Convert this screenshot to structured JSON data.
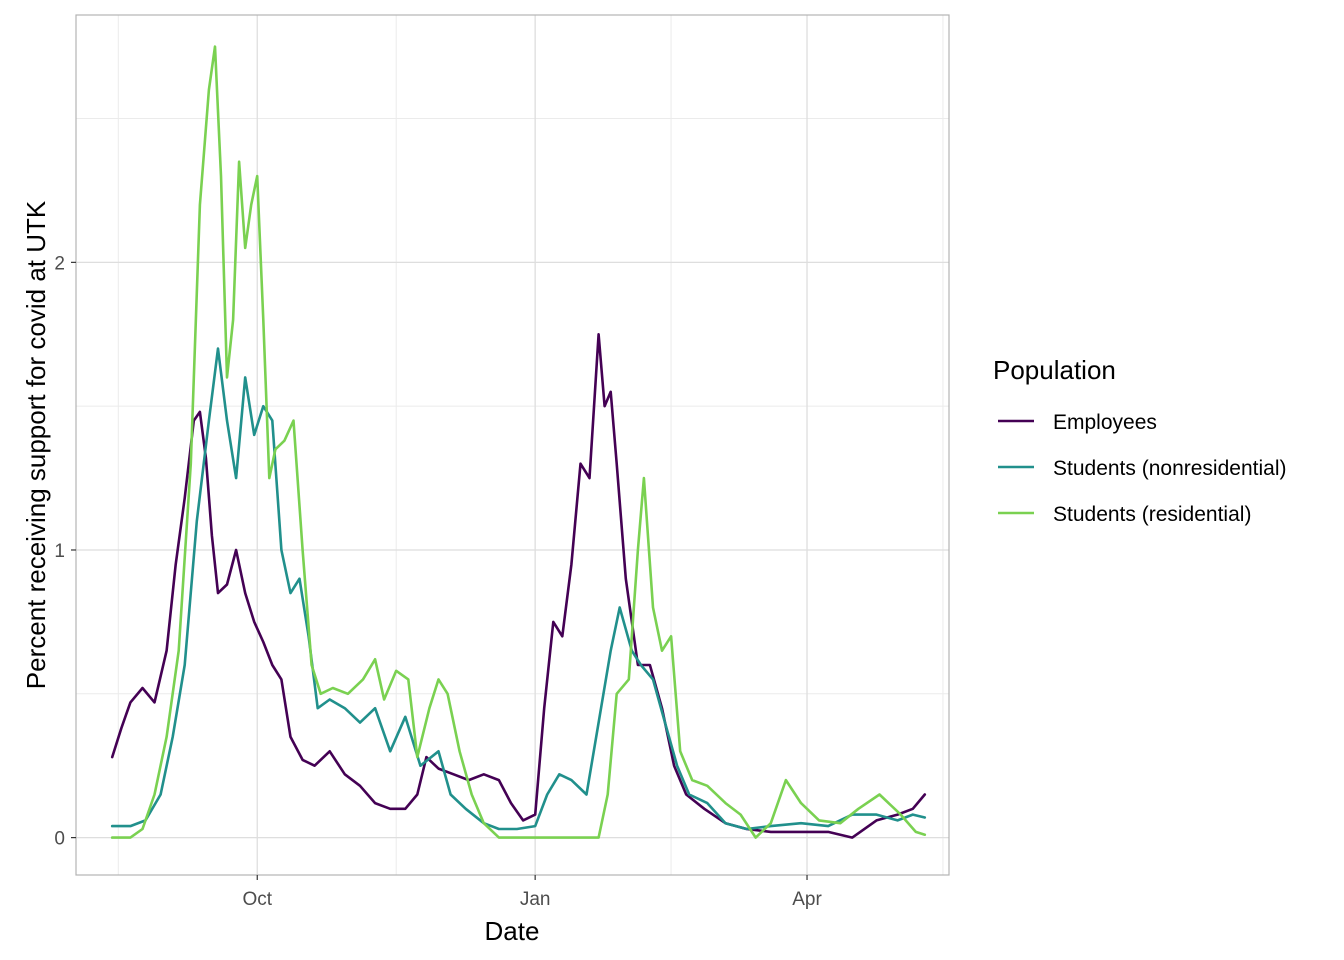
{
  "chart_data": {
    "type": "line",
    "xlabel": "Date",
    "ylabel": "Percent receiving support for covid at UTK",
    "x_start": "2020-08-14",
    "x_end": "2021-05-10",
    "xlim": [
      "2020-08-02",
      "2021-05-18"
    ],
    "ylim": [
      -0.13,
      2.86
    ],
    "x_ticks": [
      {
        "date": "2020-10-01",
        "label": "Oct"
      },
      {
        "date": "2021-01-01",
        "label": "Jan"
      },
      {
        "date": "2021-04-01",
        "label": "Apr"
      }
    ],
    "x_minor_ticks": [
      "2020-08-16",
      "2020-11-16",
      "2021-02-15",
      "2021-05-16"
    ],
    "y_ticks": [
      {
        "value": 0,
        "label": "0"
      },
      {
        "value": 1,
        "label": "1"
      },
      {
        "value": 2,
        "label": "2"
      }
    ],
    "y_minor_ticks": [
      0.5,
      1.5,
      2.5
    ],
    "grid": true,
    "legend": {
      "title": "Population",
      "position": "right"
    },
    "series": [
      {
        "name": "Employees",
        "color": "#440154",
        "points": [
          [
            "2020-08-14",
            0.28
          ],
          [
            "2020-08-17",
            0.38
          ],
          [
            "2020-08-20",
            0.47
          ],
          [
            "2020-08-24",
            0.52
          ],
          [
            "2020-08-28",
            0.47
          ],
          [
            "2020-09-01",
            0.65
          ],
          [
            "2020-09-04",
            0.95
          ],
          [
            "2020-09-07",
            1.18
          ],
          [
            "2020-09-10",
            1.45
          ],
          [
            "2020-09-12",
            1.48
          ],
          [
            "2020-09-14",
            1.32
          ],
          [
            "2020-09-16",
            1.05
          ],
          [
            "2020-09-18",
            0.85
          ],
          [
            "2020-09-21",
            0.88
          ],
          [
            "2020-09-24",
            1.0
          ],
          [
            "2020-09-27",
            0.85
          ],
          [
            "2020-09-30",
            0.75
          ],
          [
            "2020-10-03",
            0.68
          ],
          [
            "2020-10-06",
            0.6
          ],
          [
            "2020-10-09",
            0.55
          ],
          [
            "2020-10-12",
            0.35
          ],
          [
            "2020-10-16",
            0.27
          ],
          [
            "2020-10-20",
            0.25
          ],
          [
            "2020-10-25",
            0.3
          ],
          [
            "2020-10-30",
            0.22
          ],
          [
            "2020-11-04",
            0.18
          ],
          [
            "2020-11-09",
            0.12
          ],
          [
            "2020-11-14",
            0.1
          ],
          [
            "2020-11-19",
            0.1
          ],
          [
            "2020-11-23",
            0.15
          ],
          [
            "2020-11-26",
            0.28
          ],
          [
            "2020-11-30",
            0.24
          ],
          [
            "2020-12-05",
            0.22
          ],
          [
            "2020-12-10",
            0.2
          ],
          [
            "2020-12-15",
            0.22
          ],
          [
            "2020-12-20",
            0.2
          ],
          [
            "2020-12-24",
            0.12
          ],
          [
            "2020-12-28",
            0.06
          ],
          [
            "2021-01-01",
            0.08
          ],
          [
            "2021-01-04",
            0.45
          ],
          [
            "2021-01-07",
            0.75
          ],
          [
            "2021-01-10",
            0.7
          ],
          [
            "2021-01-13",
            0.95
          ],
          [
            "2021-01-16",
            1.3
          ],
          [
            "2021-01-19",
            1.25
          ],
          [
            "2021-01-22",
            1.75
          ],
          [
            "2021-01-24",
            1.5
          ],
          [
            "2021-01-26",
            1.55
          ],
          [
            "2021-01-28",
            1.3
          ],
          [
            "2021-01-31",
            0.9
          ],
          [
            "2021-02-04",
            0.6
          ],
          [
            "2021-02-08",
            0.6
          ],
          [
            "2021-02-12",
            0.45
          ],
          [
            "2021-02-16",
            0.25
          ],
          [
            "2021-02-20",
            0.15
          ],
          [
            "2021-02-26",
            0.1
          ],
          [
            "2021-03-05",
            0.05
          ],
          [
            "2021-03-12",
            0.03
          ],
          [
            "2021-03-20",
            0.02
          ],
          [
            "2021-03-30",
            0.02
          ],
          [
            "2021-04-08",
            0.02
          ],
          [
            "2021-04-16",
            0.0
          ],
          [
            "2021-04-24",
            0.06
          ],
          [
            "2021-05-01",
            0.08
          ],
          [
            "2021-05-06",
            0.1
          ],
          [
            "2021-05-10",
            0.15
          ]
        ]
      },
      {
        "name": "Students (nonresidential)",
        "color": "#21908C",
        "points": [
          [
            "2020-08-14",
            0.04
          ],
          [
            "2020-08-20",
            0.04
          ],
          [
            "2020-08-25",
            0.06
          ],
          [
            "2020-08-30",
            0.15
          ],
          [
            "2020-09-03",
            0.35
          ],
          [
            "2020-09-07",
            0.6
          ],
          [
            "2020-09-11",
            1.1
          ],
          [
            "2020-09-15",
            1.45
          ],
          [
            "2020-09-18",
            1.7
          ],
          [
            "2020-09-21",
            1.45
          ],
          [
            "2020-09-24",
            1.25
          ],
          [
            "2020-09-27",
            1.6
          ],
          [
            "2020-09-30",
            1.4
          ],
          [
            "2020-10-03",
            1.5
          ],
          [
            "2020-10-06",
            1.45
          ],
          [
            "2020-10-09",
            1.0
          ],
          [
            "2020-10-12",
            0.85
          ],
          [
            "2020-10-15",
            0.9
          ],
          [
            "2020-10-18",
            0.7
          ],
          [
            "2020-10-21",
            0.45
          ],
          [
            "2020-10-25",
            0.48
          ],
          [
            "2020-10-30",
            0.45
          ],
          [
            "2020-11-04",
            0.4
          ],
          [
            "2020-11-09",
            0.45
          ],
          [
            "2020-11-14",
            0.3
          ],
          [
            "2020-11-19",
            0.42
          ],
          [
            "2020-11-24",
            0.25
          ],
          [
            "2020-11-30",
            0.3
          ],
          [
            "2020-12-04",
            0.15
          ],
          [
            "2020-12-09",
            0.1
          ],
          [
            "2020-12-15",
            0.05
          ],
          [
            "2020-12-20",
            0.03
          ],
          [
            "2020-12-26",
            0.03
          ],
          [
            "2021-01-01",
            0.04
          ],
          [
            "2021-01-05",
            0.15
          ],
          [
            "2021-01-09",
            0.22
          ],
          [
            "2021-01-13",
            0.2
          ],
          [
            "2021-01-18",
            0.15
          ],
          [
            "2021-01-22",
            0.4
          ],
          [
            "2021-01-26",
            0.65
          ],
          [
            "2021-01-29",
            0.8
          ],
          [
            "2021-02-02",
            0.65
          ],
          [
            "2021-02-05",
            0.6
          ],
          [
            "2021-02-09",
            0.55
          ],
          [
            "2021-02-13",
            0.4
          ],
          [
            "2021-02-17",
            0.25
          ],
          [
            "2021-02-21",
            0.15
          ],
          [
            "2021-02-27",
            0.12
          ],
          [
            "2021-03-05",
            0.05
          ],
          [
            "2021-03-12",
            0.03
          ],
          [
            "2021-03-20",
            0.04
          ],
          [
            "2021-03-30",
            0.05
          ],
          [
            "2021-04-08",
            0.04
          ],
          [
            "2021-04-16",
            0.08
          ],
          [
            "2021-04-24",
            0.08
          ],
          [
            "2021-05-01",
            0.06
          ],
          [
            "2021-05-06",
            0.08
          ],
          [
            "2021-05-10",
            0.07
          ]
        ]
      },
      {
        "name": "Students (residential)",
        "color": "#7AD151",
        "points": [
          [
            "2020-08-14",
            0.0
          ],
          [
            "2020-08-20",
            0.0
          ],
          [
            "2020-08-24",
            0.03
          ],
          [
            "2020-08-28",
            0.15
          ],
          [
            "2020-09-01",
            0.35
          ],
          [
            "2020-09-05",
            0.65
          ],
          [
            "2020-09-09",
            1.3
          ],
          [
            "2020-09-12",
            2.2
          ],
          [
            "2020-09-15",
            2.6
          ],
          [
            "2020-09-17",
            2.75
          ],
          [
            "2020-09-19",
            2.3
          ],
          [
            "2020-09-21",
            1.6
          ],
          [
            "2020-09-23",
            1.8
          ],
          [
            "2020-09-25",
            2.35
          ],
          [
            "2020-09-27",
            2.05
          ],
          [
            "2020-09-29",
            2.2
          ],
          [
            "2020-10-01",
            2.3
          ],
          [
            "2020-10-03",
            1.8
          ],
          [
            "2020-10-05",
            1.25
          ],
          [
            "2020-10-07",
            1.35
          ],
          [
            "2020-10-10",
            1.38
          ],
          [
            "2020-10-13",
            1.45
          ],
          [
            "2020-10-16",
            1.0
          ],
          [
            "2020-10-19",
            0.6
          ],
          [
            "2020-10-22",
            0.5
          ],
          [
            "2020-10-26",
            0.52
          ],
          [
            "2020-10-31",
            0.5
          ],
          [
            "2020-11-05",
            0.55
          ],
          [
            "2020-11-09",
            0.62
          ],
          [
            "2020-11-12",
            0.48
          ],
          [
            "2020-11-16",
            0.58
          ],
          [
            "2020-11-20",
            0.55
          ],
          [
            "2020-11-23",
            0.28
          ],
          [
            "2020-11-27",
            0.45
          ],
          [
            "2020-11-30",
            0.55
          ],
          [
            "2020-12-03",
            0.5
          ],
          [
            "2020-12-07",
            0.3
          ],
          [
            "2020-12-11",
            0.15
          ],
          [
            "2020-12-15",
            0.05
          ],
          [
            "2020-12-20",
            0.0
          ],
          [
            "2021-01-01",
            0.0
          ],
          [
            "2021-01-12",
            0.0
          ],
          [
            "2021-01-22",
            0.0
          ],
          [
            "2021-01-25",
            0.15
          ],
          [
            "2021-01-28",
            0.5
          ],
          [
            "2021-02-01",
            0.55
          ],
          [
            "2021-02-04",
            1.0
          ],
          [
            "2021-02-06",
            1.25
          ],
          [
            "2021-02-09",
            0.8
          ],
          [
            "2021-02-12",
            0.65
          ],
          [
            "2021-02-15",
            0.7
          ],
          [
            "2021-02-18",
            0.3
          ],
          [
            "2021-02-22",
            0.2
          ],
          [
            "2021-02-27",
            0.18
          ],
          [
            "2021-03-05",
            0.12
          ],
          [
            "2021-03-10",
            0.08
          ],
          [
            "2021-03-15",
            0.0
          ],
          [
            "2021-03-20",
            0.05
          ],
          [
            "2021-03-25",
            0.2
          ],
          [
            "2021-03-30",
            0.12
          ],
          [
            "2021-04-05",
            0.06
          ],
          [
            "2021-04-12",
            0.05
          ],
          [
            "2021-04-18",
            0.1
          ],
          [
            "2021-04-25",
            0.15
          ],
          [
            "2021-05-02",
            0.08
          ],
          [
            "2021-05-07",
            0.02
          ],
          [
            "2021-05-10",
            0.01
          ]
        ]
      }
    ]
  }
}
